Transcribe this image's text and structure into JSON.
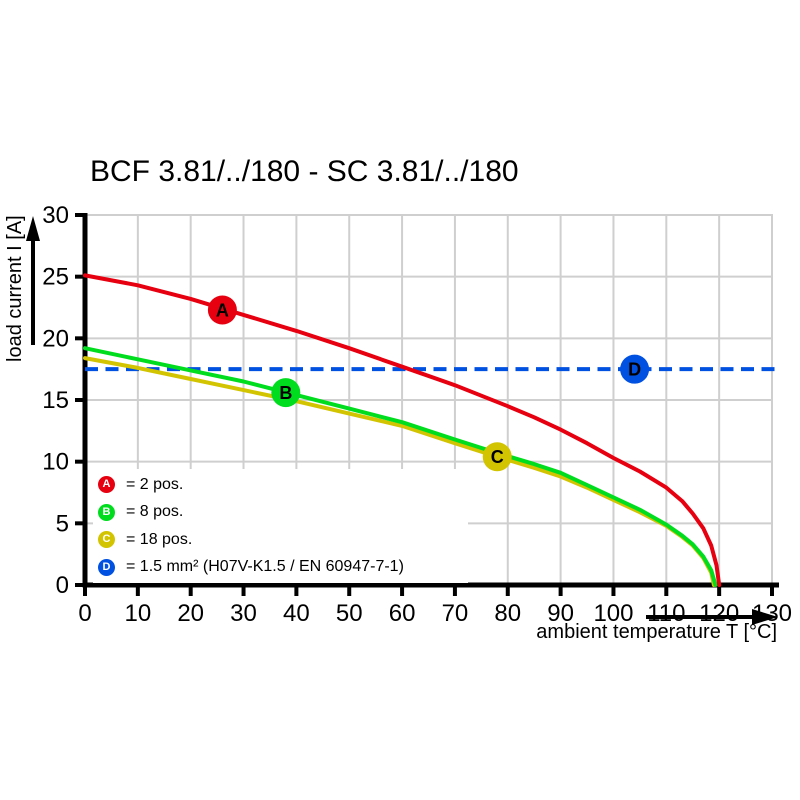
{
  "title": "BCF 3.81/../180 - SC 3.81/../180",
  "chart_data": {
    "type": "line",
    "title": "BCF 3.81/../180 - SC 3.81/../180",
    "xlabel": "ambient temperature T [°C]",
    "ylabel": "load current I [A]",
    "xlim": [
      0,
      130
    ],
    "ylim": [
      0,
      30
    ],
    "x_ticks": [
      0,
      10,
      20,
      30,
      40,
      50,
      60,
      70,
      80,
      90,
      100,
      110,
      120,
      130
    ],
    "y_ticks": [
      0,
      5,
      10,
      15,
      20,
      25,
      30
    ],
    "grid": true,
    "grid_color": "#cfcfcf",
    "axis_color": "#000000",
    "legend_position": "lower-left",
    "series": [
      {
        "id": "A",
        "name": "2 pos.",
        "color": "#e60010",
        "marker": {
          "x": 26,
          "y": 22.3
        },
        "points": [
          [
            0,
            25.1
          ],
          [
            10,
            24.3
          ],
          [
            20,
            23.2
          ],
          [
            30,
            21.9
          ],
          [
            40,
            20.6
          ],
          [
            50,
            19.2
          ],
          [
            60,
            17.7
          ],
          [
            70,
            16.2
          ],
          [
            80,
            14.5
          ],
          [
            85,
            13.6
          ],
          [
            90,
            12.6
          ],
          [
            95,
            11.5
          ],
          [
            100,
            10.3
          ],
          [
            105,
            9.2
          ],
          [
            110,
            7.9
          ],
          [
            113,
            6.8
          ],
          [
            115,
            5.8
          ],
          [
            117,
            4.6
          ],
          [
            118.5,
            3.2
          ],
          [
            119.5,
            1.6
          ],
          [
            120,
            0
          ]
        ]
      },
      {
        "id": "B",
        "name": "8 pos.",
        "color": "#00dd1f",
        "marker": {
          "x": 38,
          "y": 15.6
        },
        "points": [
          [
            0,
            19.2
          ],
          [
            10,
            18.3
          ],
          [
            20,
            17.4
          ],
          [
            30,
            16.5
          ],
          [
            40,
            15.4
          ],
          [
            50,
            14.3
          ],
          [
            60,
            13.2
          ],
          [
            70,
            11.8
          ],
          [
            78,
            10.7
          ],
          [
            85,
            9.8
          ],
          [
            90,
            9.1
          ],
          [
            95,
            8.1
          ],
          [
            100,
            7.1
          ],
          [
            105,
            6.1
          ],
          [
            110,
            4.9
          ],
          [
            113,
            4.0
          ],
          [
            115,
            3.3
          ],
          [
            117,
            2.3
          ],
          [
            118.5,
            1.2
          ],
          [
            119.3,
            0
          ]
        ]
      },
      {
        "id": "C",
        "name": "18 pos.",
        "color": "#d2c400",
        "marker": {
          "x": 78,
          "y": 10.4
        },
        "points": [
          [
            0,
            18.4
          ],
          [
            10,
            17.6
          ],
          [
            20,
            16.7
          ],
          [
            30,
            15.8
          ],
          [
            40,
            14.9
          ],
          [
            50,
            13.9
          ],
          [
            60,
            12.9
          ],
          [
            70,
            11.5
          ],
          [
            78,
            10.4
          ],
          [
            85,
            9.5
          ],
          [
            90,
            8.8
          ],
          [
            95,
            7.9
          ],
          [
            100,
            6.9
          ],
          [
            105,
            5.9
          ],
          [
            110,
            4.8
          ],
          [
            113,
            3.9
          ],
          [
            115,
            3.2
          ],
          [
            117,
            2.2
          ],
          [
            118.5,
            1.0
          ],
          [
            119,
            0
          ]
        ]
      }
    ],
    "reference_line": {
      "id": "D",
      "name": "1.5 mm² (H07V-K1.5 / EN 60947-7-1)",
      "color": "#0051e1",
      "y": 17.5,
      "style": "dashed",
      "marker": {
        "x": 104,
        "y": 17.5
      }
    },
    "legend": [
      {
        "letter": "A",
        "color": "#e60010",
        "label": "= 2 pos."
      },
      {
        "letter": "B",
        "color": "#00dd1f",
        "label": "= 8 pos."
      },
      {
        "letter": "C",
        "color": "#d2c400",
        "label": "= 18 pos."
      },
      {
        "letter": "D",
        "color": "#0051e1",
        "label": "= 1.5 mm² (H07V-K1.5 / EN 60947-7-1)"
      }
    ]
  }
}
